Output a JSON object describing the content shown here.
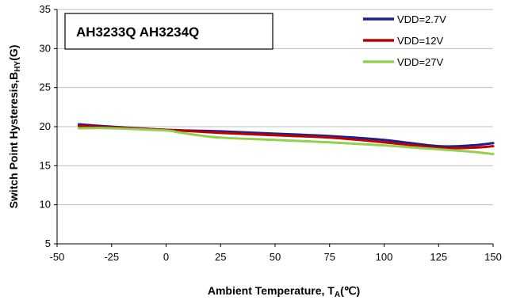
{
  "chart_data": {
    "type": "line",
    "title": "AH3233Q AH3234Q",
    "xlabel": {
      "main": "Ambient  Temperature, T",
      "sub": "A",
      "unit": "(℃)"
    },
    "ylabel": {
      "main": "Switch Point Hysteresis,B",
      "sub": "HY",
      "unit": "(G)"
    },
    "xlim": [
      -50,
      150
    ],
    "ylim": [
      5,
      35
    ],
    "xticks": [
      -50,
      -25,
      0,
      25,
      50,
      75,
      100,
      125,
      150
    ],
    "yticks": [
      5,
      10,
      15,
      20,
      25,
      30,
      35
    ],
    "grid": "y",
    "legend_position": "top-right",
    "series": [
      {
        "name": "VDD=2.7V",
        "color": "#1f1f8a",
        "x": [
          -40,
          -25,
          0,
          25,
          50,
          75,
          100,
          125,
          140,
          150
        ],
        "y": [
          20.3,
          20.0,
          19.6,
          19.4,
          19.1,
          18.8,
          18.3,
          17.5,
          17.6,
          17.9
        ]
      },
      {
        "name": "VDD=12V",
        "color": "#c00000",
        "x": [
          -40,
          -25,
          0,
          25,
          50,
          75,
          100,
          125,
          140,
          150
        ],
        "y": [
          20.1,
          19.9,
          19.6,
          19.2,
          18.9,
          18.6,
          18.0,
          17.3,
          17.3,
          17.5
        ]
      },
      {
        "name": "VDD=27V",
        "color": "#92d050",
        "x": [
          -40,
          -25,
          0,
          5,
          15,
          25,
          50,
          75,
          100,
          125,
          140,
          150
        ],
        "y": [
          19.8,
          19.8,
          19.5,
          19.3,
          18.9,
          18.6,
          18.3,
          18.0,
          17.6,
          17.1,
          16.8,
          16.5
        ]
      }
    ]
  }
}
